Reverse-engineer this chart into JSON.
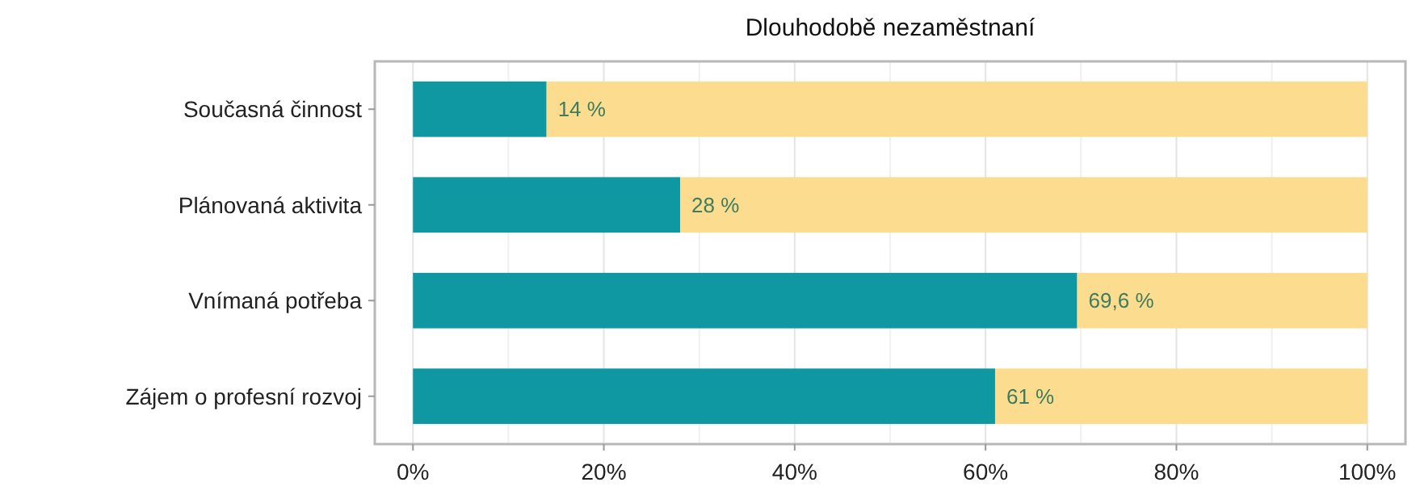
{
  "chart_data": {
    "type": "bar",
    "title": "Dlouhodobě nezaměstnaní",
    "orientation": "horizontal",
    "stacked": true,
    "categories": [
      "Současná činnost",
      "Plánovaná aktivita",
      "Vnímaná potřeba",
      "Zájem o profesní rozvoj"
    ],
    "series": [
      {
        "color": "#0f98a1",
        "values": [
          14,
          28,
          69.6,
          61
        ],
        "value_labels": [
          "14 %",
          "28 %",
          "69,6 %",
          "61 %"
        ]
      },
      {
        "color": "#fcdc8e",
        "values": [
          86,
          72,
          30.4,
          39
        ]
      }
    ],
    "xlim": [
      -4,
      104
    ],
    "xticks": [
      {
        "value": 0,
        "label": "0%"
      },
      {
        "value": 20,
        "label": "20%"
      },
      {
        "value": 40,
        "label": "40%"
      },
      {
        "value": 60,
        "label": "60%"
      },
      {
        "value": 80,
        "label": "80%"
      },
      {
        "value": 100,
        "label": "100%"
      }
    ],
    "grid": "x"
  }
}
